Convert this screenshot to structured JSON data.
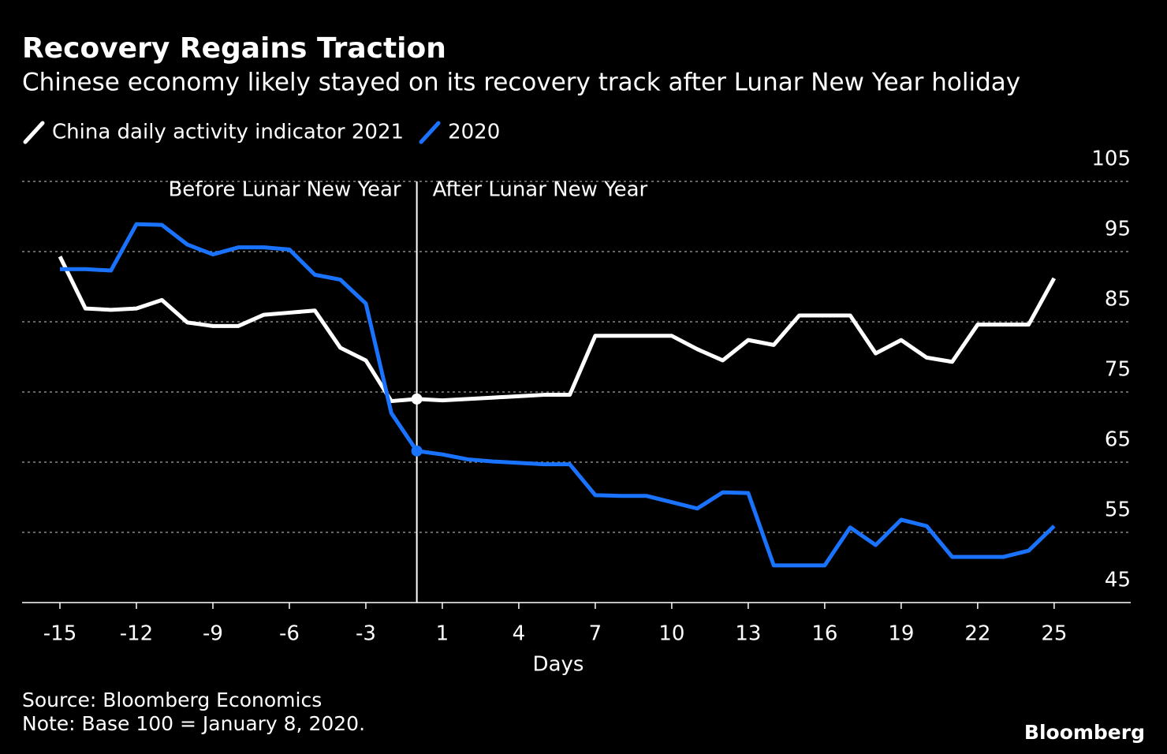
{
  "chart_data": {
    "type": "line",
    "title": "Recovery Regains Traction",
    "subtitle": "Chinese economy likely stayed on its recovery track after Lunar New Year holiday",
    "categories": [
      "-15",
      null,
      null,
      "-12",
      null,
      null,
      "-9",
      null,
      null,
      "-6",
      null,
      null,
      "-3",
      null,
      null,
      "1",
      null,
      null,
      "4",
      null,
      null,
      "7",
      null,
      null,
      "10",
      null,
      null,
      "13",
      null,
      null,
      "16",
      null,
      null,
      "19",
      null,
      null,
      "22",
      null,
      null,
      "25"
    ],
    "series": [
      {
        "name": "China daily activity indicator 2021",
        "color": "#ffffff",
        "values": [
          94.3,
          86.9,
          86.7,
          86.9,
          88.1,
          84.9,
          84.4,
          84.4,
          86.0,
          86.3,
          86.6,
          81.3,
          79.5,
          73.7,
          74.0,
          73.8,
          74.0,
          74.2,
          74.4,
          74.6,
          74.6,
          83.0,
          83.0,
          83.0,
          83.0,
          81.1,
          79.5,
          82.4,
          81.7,
          85.9,
          85.9,
          85.9,
          80.5,
          82.4,
          79.9,
          79.3,
          84.6,
          84.6,
          84.6,
          91.2
        ]
      },
      {
        "name": "2020",
        "color": "#1a73ff",
        "values": [
          92.5,
          92.5,
          92.3,
          98.9,
          98.8,
          96.0,
          94.6,
          95.6,
          95.6,
          95.3,
          91.7,
          91.0,
          87.6,
          72.0,
          66.6,
          66.1,
          65.4,
          65.1,
          64.9,
          64.7,
          64.7,
          60.3,
          60.2,
          60.2,
          59.3,
          58.4,
          60.7,
          60.6,
          50.3,
          50.3,
          50.3,
          55.7,
          53.2,
          56.8,
          55.9,
          51.5,
          51.5,
          51.5,
          52.4,
          55.9
        ]
      }
    ],
    "ylim": [
      45,
      105
    ],
    "yticks": [
      45,
      55,
      65,
      75,
      85,
      95,
      105
    ],
    "xlabel": "Days",
    "annotations": [
      "Before Lunar New Year",
      "After Lunar New Year"
    ],
    "grid": true,
    "source": "Source: Bloomberg Economics",
    "note": "Note: Base 100 = January 8, 2020.",
    "logo": "Bloomberg"
  }
}
